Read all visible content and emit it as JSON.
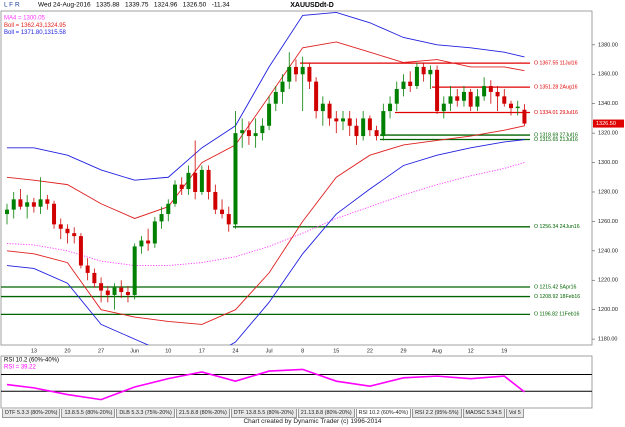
{
  "toolbar": "L F R",
  "chart_data": [
    {
      "type": "candlestick",
      "title": "XAUUSDdt-D",
      "subtitle": "Wed 24-Aug-2016   1335.88   1339.75   1324.96   1326.50   -11.34",
      "categories": [
        null,
        null,
        null,
        null,
        "13",
        null,
        null,
        null,
        null,
        "20",
        null,
        null,
        null,
        null,
        "27",
        null,
        null,
        null,
        null,
        "Jun",
        null,
        null,
        null,
        null,
        "10",
        null,
        null,
        null,
        null,
        "17",
        null,
        null,
        null,
        null,
        "24",
        null,
        null,
        null,
        null,
        "Jul",
        null,
        null,
        null,
        null,
        "8",
        null,
        null,
        null,
        null,
        "15",
        null,
        null,
        null,
        null,
        "22",
        null,
        null,
        null,
        null,
        "29",
        null,
        null,
        null,
        null,
        "Aug",
        null,
        null,
        null,
        null,
        "12",
        null,
        null,
        null,
        null,
        "19",
        null,
        null,
        null
      ],
      "ohlc": [
        [
          1265,
          1272,
          1258,
          1268
        ],
        [
          1268,
          1280,
          1262,
          1275
        ],
        [
          1275,
          1282,
          1268,
          1270
        ],
        [
          1270,
          1278,
          1262,
          1273
        ],
        [
          1273,
          1276,
          1266,
          1270
        ],
        [
          1270,
          1290,
          1265,
          1275
        ],
        [
          1275,
          1278,
          1268,
          1272
        ],
        [
          1272,
          1274,
          1255,
          1258
        ],
        [
          1258,
          1262,
          1248,
          1255
        ],
        [
          1255,
          1258,
          1245,
          1252
        ],
        [
          1252,
          1256,
          1245,
          1250
        ],
        [
          1250,
          1252,
          1228,
          1230
        ],
        [
          1230,
          1235,
          1220,
          1225
        ],
        [
          1225,
          1228,
          1215,
          1218
        ],
        [
          1218,
          1222,
          1205,
          1213
        ],
        [
          1213,
          1216,
          1205,
          1210
        ],
        [
          1210,
          1218,
          1200,
          1215
        ],
        [
          1215,
          1220,
          1208,
          1212
        ],
        [
          1212,
          1216,
          1205,
          1210
        ],
        [
          1210,
          1245,
          1207,
          1243
        ],
        [
          1243,
          1250,
          1238,
          1247
        ],
        [
          1247,
          1255,
          1240,
          1245
        ],
        [
          1245,
          1263,
          1242,
          1260
        ],
        [
          1260,
          1270,
          1255,
          1265
        ],
        [
          1265,
          1275,
          1260,
          1272
        ],
        [
          1272,
          1288,
          1270,
          1285
        ],
        [
          1285,
          1290,
          1278,
          1282
        ],
        [
          1282,
          1298,
          1278,
          1293
        ],
        [
          1293,
          1315,
          1275,
          1280
        ],
        [
          1280,
          1298,
          1278,
          1295
        ],
        [
          1295,
          1298,
          1275,
          1280
        ],
        [
          1280,
          1285,
          1265,
          1268
        ],
        [
          1268,
          1275,
          1262,
          1265
        ],
        [
          1265,
          1270,
          1253,
          1258
        ],
        [
          1258,
          1335,
          1255,
          1320
        ],
        [
          1320,
          1330,
          1310,
          1322
        ],
        [
          1322,
          1328,
          1312,
          1318
        ],
        [
          1318,
          1330,
          1310,
          1320
        ],
        [
          1320,
          1330,
          1315,
          1325
        ],
        [
          1325,
          1345,
          1322,
          1340
        ],
        [
          1340,
          1352,
          1335,
          1348
        ],
        [
          1348,
          1360,
          1340,
          1355
        ],
        [
          1355,
          1375,
          1350,
          1365
        ],
        [
          1365,
          1370,
          1355,
          1360
        ],
        [
          1360,
          1372,
          1335,
          1365
        ],
        [
          1365,
          1368,
          1350,
          1355
        ],
        [
          1355,
          1358,
          1330,
          1335
        ],
        [
          1335,
          1345,
          1325,
          1340
        ],
        [
          1340,
          1342,
          1325,
          1330
        ],
        [
          1330,
          1335,
          1320,
          1328
        ],
        [
          1328,
          1335,
          1322,
          1330
        ],
        [
          1330,
          1335,
          1318,
          1325
        ],
        [
          1325,
          1330,
          1312,
          1318
        ],
        [
          1318,
          1335,
          1315,
          1330
        ],
        [
          1330,
          1332,
          1318,
          1322
        ],
        [
          1322,
          1325,
          1315,
          1318
        ],
        [
          1318,
          1340,
          1315,
          1335
        ],
        [
          1335,
          1345,
          1330,
          1340
        ],
        [
          1340,
          1355,
          1335,
          1350
        ],
        [
          1350,
          1360,
          1345,
          1355
        ],
        [
          1355,
          1362,
          1348,
          1352
        ],
        [
          1352,
          1368,
          1350,
          1365
        ],
        [
          1365,
          1368,
          1355,
          1360
        ],
        [
          1360,
          1366,
          1350,
          1363
        ],
        [
          1363,
          1366,
          1333,
          1335
        ],
        [
          1335,
          1345,
          1330,
          1340
        ],
        [
          1340,
          1352,
          1335,
          1345
        ],
        [
          1345,
          1350,
          1338,
          1342
        ],
        [
          1342,
          1352,
          1338,
          1348
        ],
        [
          1348,
          1350,
          1335,
          1338
        ],
        [
          1338,
          1350,
          1335,
          1345
        ],
        [
          1345,
          1358,
          1342,
          1352
        ],
        [
          1352,
          1356,
          1340,
          1348
        ],
        [
          1348,
          1352,
          1335,
          1345
        ],
        [
          1345,
          1350,
          1338,
          1340
        ],
        [
          1340,
          1342,
          1332,
          1337
        ],
        [
          1337,
          1342,
          1332,
          1338
        ],
        [
          1335.88,
          1339.75,
          1324.96,
          1326.5
        ]
      ],
      "up_color": "#008000",
      "down_color": "#d00000",
      "ylim": [
        1176,
        1403
      ],
      "yticks": [
        {
          "value": 1180,
          "label": "1180.00"
        },
        {
          "value": 1200,
          "label": "1200.00"
        },
        {
          "value": 1220,
          "label": "1220.00"
        },
        {
          "value": 1240,
          "label": "1240.00"
        },
        {
          "value": 1260,
          "label": "1260.00"
        },
        {
          "value": 1280,
          "label": "1280.00"
        },
        {
          "value": 1300,
          "label": "1300.00"
        },
        {
          "value": 1320,
          "label": "1320.00"
        },
        {
          "value": 1340,
          "label": "1340.00"
        },
        {
          "value": 1360,
          "label": "1360.00"
        },
        {
          "value": 1380,
          "label": "1380.00"
        }
      ],
      "overlays": [
        {
          "name": "MA4 = 1300.05",
          "color": "#ff33ff",
          "style": "dotted",
          "x": [
            0,
            4,
            9,
            14,
            19,
            24,
            29,
            34,
            39,
            44,
            49,
            54,
            59,
            64,
            69,
            74,
            77
          ],
          "values": [
            1245,
            1244,
            1240,
            1233,
            1230,
            1230,
            1232,
            1236,
            1243,
            1252,
            1262,
            1270,
            1278,
            1285,
            1291,
            1296,
            1300.05
          ]
        },
        {
          "name": "Boll = 1362.43,1324.95",
          "color": "#e02020",
          "x": [
            0,
            4,
            9,
            14,
            19,
            24,
            29,
            34,
            39,
            44,
            49,
            54,
            59,
            64,
            69,
            74,
            77
          ],
          "upper": [
            1290,
            1288,
            1285,
            1272,
            1262,
            1270,
            1300,
            1312,
            1345,
            1378,
            1382,
            1375,
            1368,
            1370,
            1365,
            1365,
            1362.43
          ],
          "lower": [
            1240,
            1238,
            1232,
            1200,
            1195,
            1192,
            1190,
            1200,
            1225,
            1260,
            1290,
            1305,
            1312,
            1315,
            1318,
            1322,
            1324.95
          ]
        },
        {
          "name": "Boll = 1371.80,1315.58",
          "color": "#2020e0",
          "x": [
            0,
            4,
            9,
            14,
            19,
            24,
            29,
            34,
            39,
            44,
            49,
            54,
            59,
            64,
            69,
            74,
            77
          ],
          "upper": [
            1310,
            1310,
            1305,
            1295,
            1288,
            1290,
            1310,
            1325,
            1365,
            1400,
            1402,
            1395,
            1385,
            1380,
            1378,
            1375,
            1371.8
          ],
          "lower": [
            1230,
            1228,
            1218,
            1190,
            1180,
            1170,
            1165,
            1178,
            1205,
            1238,
            1265,
            1282,
            1298,
            1305,
            1310,
            1314,
            1315.58
          ]
        }
      ],
      "levels": [
        {
          "value": 1367.55,
          "label": "O 1367.55 11Jul16",
          "color": "#e00000"
        },
        {
          "value": 1351.28,
          "label": "O 1351.28 2Aug16",
          "color": "#e00000"
        },
        {
          "value": 1334.01,
          "label": "O 1334.01 29Jul16",
          "color": "#e00000"
        },
        {
          "value": 1318.69,
          "label": "O 1318.69 27Jul16",
          "color": "#006400"
        },
        {
          "value": 1315.65,
          "label": "O 1315.65 21Jul16",
          "color": "#006400"
        },
        {
          "value": 1256.34,
          "label": "O 1256.34 24Jun16",
          "color": "#006400"
        },
        {
          "value": 1215.42,
          "label": "O 1215.42 5Apr16",
          "color": "#006400"
        },
        {
          "value": 1208.92,
          "label": "O 1208.92 18Feb16",
          "color": "#006400"
        },
        {
          "value": 1196.82,
          "label": "O 1196.82 11Feb16",
          "color": "#006400"
        }
      ],
      "last_price": {
        "value": 1326.5,
        "label": "1326.50",
        "color": "#e00000"
      }
    },
    {
      "type": "line",
      "title": "RSI 10.2 (60%-40%)",
      "ylim": [
        20,
        82
      ],
      "levels": [
        60,
        40
      ],
      "series": [
        {
          "name": "RSI = 39.22",
          "color": "#ff00ff",
          "x": [
            0,
            4,
            9,
            14,
            19,
            24,
            29,
            34,
            39,
            44,
            49,
            54,
            59,
            64,
            69,
            74,
            77
          ],
          "values": [
            48,
            44,
            36,
            30,
            45,
            55,
            63,
            52,
            64,
            66,
            52,
            46,
            56,
            58,
            55,
            58,
            39.22
          ]
        }
      ]
    }
  ],
  "tabs": [
    "DTF 5.3.3 (80%-20%)",
    "13.8.5.5 (80%-20%)",
    "DLB 5.3.3 (75%-20%)",
    "21.5.8.8 (80%-20%)",
    "DTF 13.8.5.5 (80%-20%)",
    "21.13.8.8 (80%-20%)",
    "RSI 10.2 (60%-40%)",
    "RSI 2.2 (95%-5%)",
    "MAOSC 5.34.5",
    "Vol 5"
  ],
  "footer": "Chart created by Dynamic Trader  (c)  1996-2014"
}
